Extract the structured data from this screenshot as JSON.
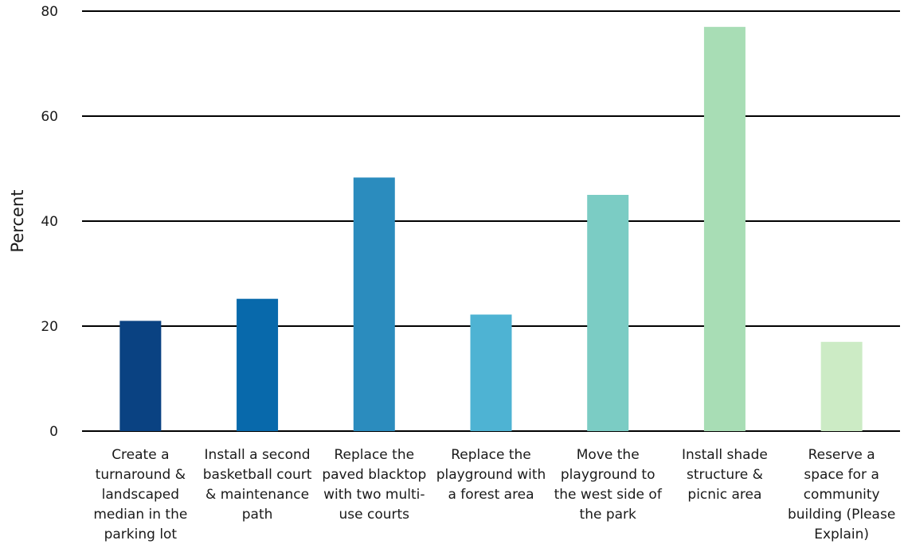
{
  "chart_data": {
    "type": "bar",
    "ylabel": "Percent",
    "xlabel": "",
    "ylim": [
      0,
      80
    ],
    "yticks": [
      0,
      20,
      40,
      60,
      80
    ],
    "grid": true,
    "categories": [
      [
        "Create a",
        "turnaround &",
        "landscaped",
        "median in the",
        "parking lot"
      ],
      [
        "Install a second",
        "basketball court",
        "& maintenance",
        "path"
      ],
      [
        "Replace the",
        "paved blacktop",
        "with two multi-",
        "use courts"
      ],
      [
        "Replace the",
        "playground with",
        "a forest area"
      ],
      [
        "Move the",
        "playground to",
        "the west side of",
        "the park"
      ],
      [
        "Install shade",
        "structure &",
        "picnic area"
      ],
      [
        "Reserve a",
        "space for a",
        "community",
        "building (Please",
        "Explain)"
      ]
    ],
    "values": [
      21,
      25.2,
      48.3,
      22.2,
      45,
      77,
      17
    ],
    "colors": [
      "#0a4282",
      "#0869ab",
      "#2b8cbe",
      "#4eb3d3",
      "#7bccc4",
      "#a8ddb5",
      "#ccebc5"
    ]
  }
}
